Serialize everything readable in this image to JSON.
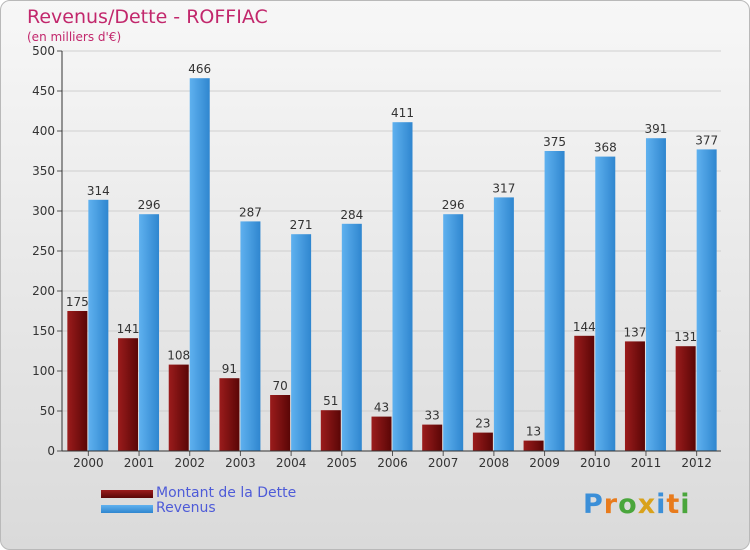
{
  "chart_data": {
    "type": "bar",
    "title": "Revenus/Dette - ROFFIAC",
    "subtitle": "(en milliers d'€)",
    "categories": [
      "2000",
      "2001",
      "2002",
      "2003",
      "2004",
      "2005",
      "2006",
      "2007",
      "2008",
      "2009",
      "2010",
      "2011",
      "2012"
    ],
    "series": [
      {
        "name": "Montant de la Dette",
        "color": "#7a0f0f",
        "values": [
          175,
          141,
          108,
          91,
          70,
          51,
          43,
          33,
          23,
          13,
          144,
          137,
          131
        ]
      },
      {
        "name": "Revenus",
        "color": "#4a9fe2",
        "values": [
          314,
          296,
          466,
          287,
          271,
          284,
          411,
          296,
          317,
          375,
          368,
          391,
          377
        ]
      }
    ],
    "ylim": [
      0,
      500
    ],
    "yticks": [
      0,
      50,
      100,
      150,
      200,
      250,
      300,
      350,
      400,
      450,
      500
    ],
    "grid": true,
    "legend_position": "bottom-left"
  },
  "logo": {
    "letters": [
      "P",
      "r",
      "o",
      "x",
      "i",
      "t",
      "i"
    ],
    "colors": [
      "#3b8fd8",
      "#e87b1c",
      "#4aa63c",
      "#d9a21b",
      "#3b8fd8",
      "#e87b1c",
      "#4aa63c"
    ]
  }
}
